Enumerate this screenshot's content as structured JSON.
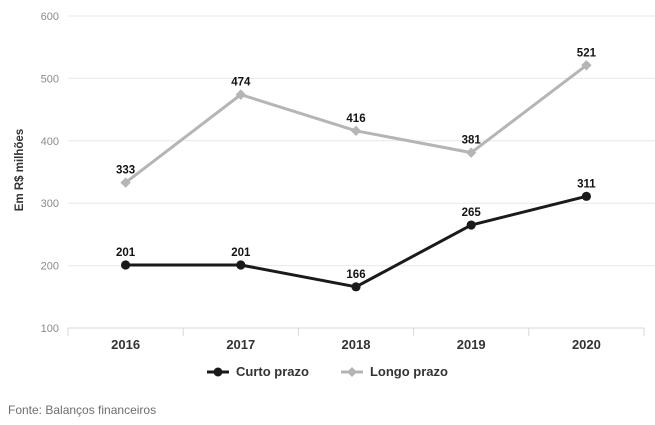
{
  "chart_data": {
    "type": "line",
    "categories": [
      "2016",
      "2017",
      "2018",
      "2019",
      "2020"
    ],
    "series": [
      {
        "name": "Curto prazo",
        "values": [
          201,
          201,
          166,
          265,
          311
        ],
        "color": "#1a1a1a",
        "marker": "circle"
      },
      {
        "name": "Longo prazo",
        "values": [
          333,
          474,
          416,
          381,
          521
        ],
        "color": "#b5b5b5",
        "marker": "diamond"
      }
    ],
    "title": "",
    "xlabel": "",
    "ylabel": "Em R$ milhões",
    "ylim": [
      100,
      600
    ],
    "yticks": [
      100,
      200,
      300,
      400,
      500,
      600
    ],
    "grid": true,
    "legend_position": "bottom",
    "data_labels": true
  },
  "colors": {
    "background": "#ffffff",
    "gridline": "#e8e8e8",
    "axis": "#d3d7dc",
    "ytick_text": "#8a8a8a",
    "xtick_text": "#333333",
    "data_label_text": "#141414",
    "legend_text": "#333333",
    "source_text": "#6e6e6e"
  },
  "source_note": "Fonte: Balanços financeiros"
}
